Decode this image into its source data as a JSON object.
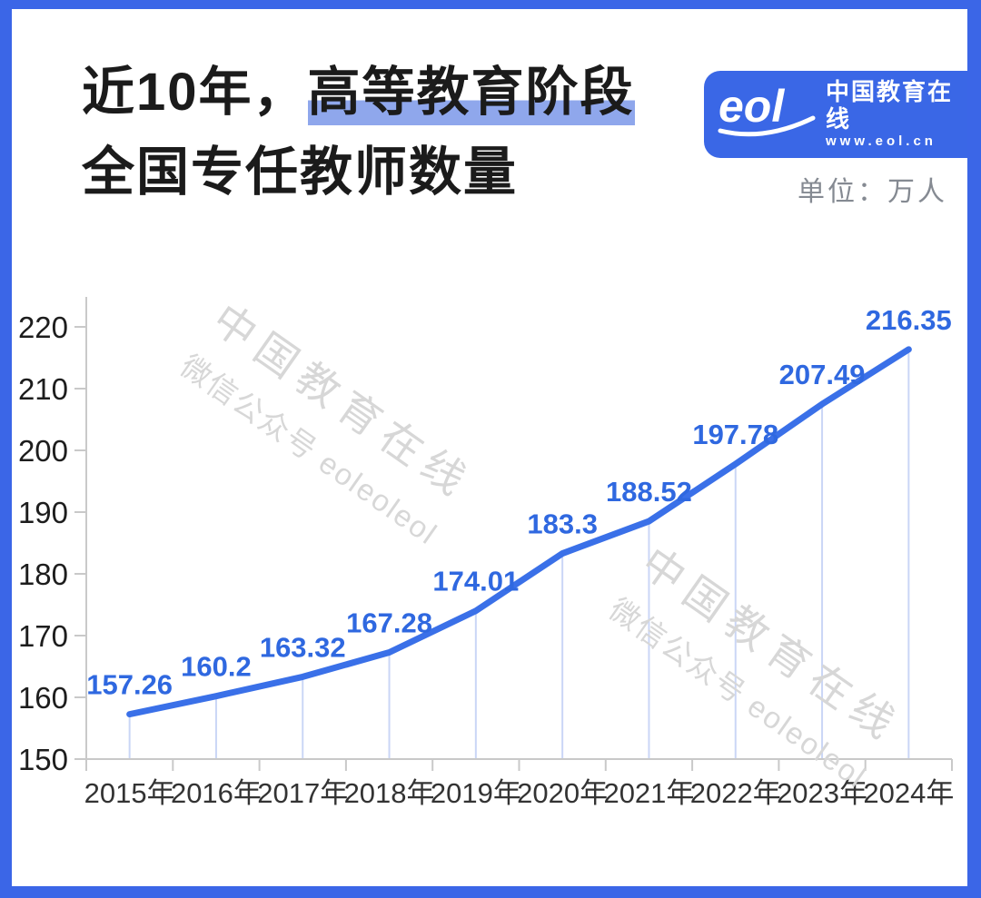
{
  "header": {
    "title_line1_prefix": "近10年，",
    "title_line1_highlight": "高等教育阶段",
    "title_line2": "全国专任教师数量",
    "unit_label": "单位：万人",
    "logo": {
      "mark": "eol",
      "name": "中国教育在线",
      "url": "www.eol.cn"
    }
  },
  "watermark": {
    "line1": "中国教育在线",
    "line2": "微信公众号 eoleoleol"
  },
  "colors": {
    "frame_blue": "#3B66E7",
    "logo_blue": "#3A67E6",
    "title_highlight": "#8FA7EC",
    "line_blue": "#3A70E8",
    "label_blue": "#2F68E0",
    "axis_gray": "#C9C9C9",
    "watermark_gray": "#D7D7D7"
  },
  "chart_data": {
    "type": "line",
    "title": "近10年，高等教育阶段全国专任教师数量",
    "unit": "万人",
    "categories": [
      "2015年",
      "2016年",
      "2017年",
      "2018年",
      "2019年",
      "2020年",
      "2021年",
      "2022年",
      "2023年",
      "2024年"
    ],
    "values": [
      157.26,
      160.2,
      163.32,
      167.28,
      174.01,
      183.3,
      188.52,
      197.78,
      207.49,
      216.35
    ],
    "data_labels": [
      "157.26",
      "160.2",
      "163.32",
      "167.28",
      "174.01",
      "183.3",
      "188.52",
      "197.78",
      "207.49",
      "216.35"
    ],
    "yticks": [
      150,
      160,
      170,
      180,
      190,
      200,
      210,
      220
    ],
    "ylim": [
      150,
      220
    ],
    "xlabel": "",
    "ylabel": "",
    "grid": false,
    "legend": "none",
    "line_color": "#3A70E8",
    "label_color": "#2F68E0",
    "drop_line_color": "#9FB6EF"
  }
}
